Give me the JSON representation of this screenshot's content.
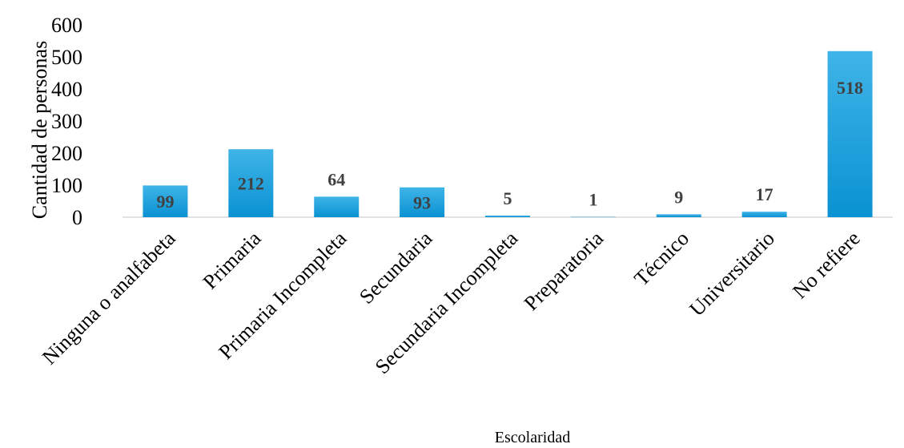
{
  "chart_data": {
    "type": "bar",
    "categories": [
      "Ninguna o analfabeta",
      "Primaria",
      "Primaria Incompleta",
      "Secundaria",
      "Secundaria Incompleta",
      "Preparatoria",
      "Técnico",
      "Universitario",
      "No refiere"
    ],
    "values": [
      99,
      212,
      64,
      93,
      5,
      1,
      9,
      17,
      518
    ],
    "data_labels": [
      "99",
      "212",
      "64",
      "93",
      "5",
      "1",
      "9",
      "17",
      "518"
    ],
    "xlabel": "Escolaridad",
    "ylabel": "Cantidad de personas",
    "ylim": [
      0,
      600
    ],
    "yticks": [
      0,
      100,
      200,
      300,
      400,
      500,
      600
    ],
    "ytick_labels": [
      "0",
      "100",
      "200",
      "300",
      "400",
      "500",
      "600"
    ],
    "grid": false,
    "legend": "none",
    "colors": {
      "bar_top": "#3fb4e8",
      "bar_bottom": "#0a92d2",
      "axis": "#d9d9d9",
      "data_label": "#404040"
    }
  }
}
